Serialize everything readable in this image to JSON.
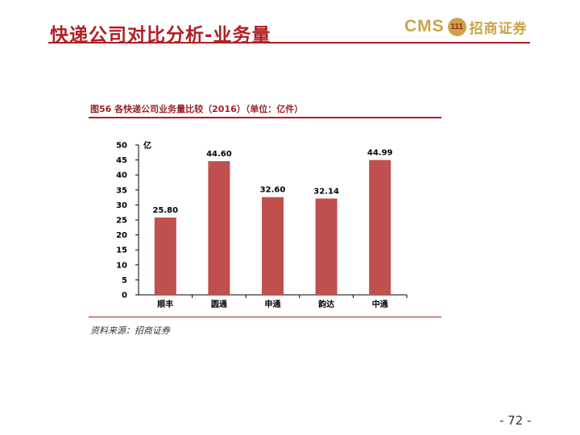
{
  "header": {
    "title": "快递公司对比分析-业务量",
    "logo_text": "CMS",
    "logo_badge": "111",
    "logo_cn": "招商证券"
  },
  "figure": {
    "caption": "图56 各快递公司业务量比较（2016）（单位：亿件）",
    "source": "资料来源：招商证券"
  },
  "footer": {
    "page_number": "- 72 -"
  },
  "colors": {
    "brand_red": "#b01f24",
    "bar": "#c0504d",
    "logo_gold": "#c9a44a"
  },
  "chart_data": {
    "type": "bar",
    "title": "图56 各快递公司业务量比较（2016）（单位：亿件）",
    "categories": [
      "顺丰",
      "圆通",
      "申通",
      "韵达",
      "中通"
    ],
    "values": [
      25.8,
      44.6,
      32.6,
      32.14,
      44.99
    ],
    "value_labels": [
      "25.80",
      "44.60",
      "32.60",
      "32.14",
      "44.99"
    ],
    "ylabel": "亿",
    "xlabel": "",
    "ylim": [
      0,
      50
    ],
    "yticks": [
      0,
      5,
      10,
      15,
      20,
      25,
      30,
      35,
      40,
      45,
      50
    ],
    "grid": false,
    "legend": "none"
  }
}
